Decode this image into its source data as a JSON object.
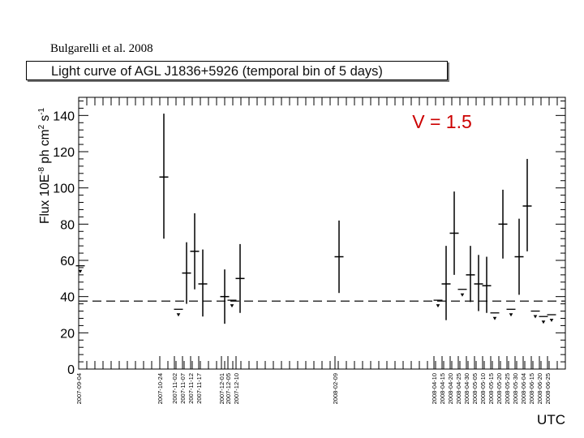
{
  "credit": "Bulgarelli et al. 2008",
  "chart_data": {
    "type": "scatter",
    "title": "Light curve of AGL J1836+5926 (temporal bin of 5 days)",
    "annotation": "V = 1.5",
    "ylabel": "Flux 10E-8 ph cm2 s-1",
    "ylabel_parts": {
      "main": "Flux 10E",
      "exp1": "-8",
      "mid": " ph cm",
      "exp2": "2",
      "mid2": " s",
      "exp3": "-1"
    },
    "xlabel": "UTC",
    "ylim": [
      0,
      150
    ],
    "yticks": [
      0,
      20,
      40,
      60,
      80,
      100,
      120,
      140
    ],
    "yticklabels": [
      "0",
      "20",
      "40",
      "60",
      "80",
      "100",
      "120",
      "140"
    ],
    "xlim": [
      0,
      300
    ],
    "xticks": [
      {
        "x": 0,
        "label": "2007-09-04"
      },
      {
        "x": 50,
        "label": "2007-10-24"
      },
      {
        "x": 59,
        "label": "2007-11-02"
      },
      {
        "x": 64,
        "label": "2007-11-07"
      },
      {
        "x": 69,
        "label": "2007-11-12"
      },
      {
        "x": 74,
        "label": "2007-11-17"
      },
      {
        "x": 88,
        "label": "2007-12-01"
      },
      {
        "x": 92,
        "label": "2007-12-05"
      },
      {
        "x": 97,
        "label": "2007-12-10"
      },
      {
        "x": 158,
        "label": "2008-02-09"
      },
      {
        "x": 219,
        "label": "2008-04-10"
      },
      {
        "x": 224,
        "label": "2008-04-15"
      },
      {
        "x": 229,
        "label": "2008-04-20"
      },
      {
        "x": 234,
        "label": "2008-04-25"
      },
      {
        "x": 239,
        "label": "2008-04-30"
      },
      {
        "x": 244,
        "label": "2008-05-05"
      },
      {
        "x": 249,
        "label": "2008-05-10"
      },
      {
        "x": 254,
        "label": "2008-05-15"
      },
      {
        "x": 259,
        "label": "2008-05-20"
      },
      {
        "x": 264,
        "label": "2008-05-25"
      },
      {
        "x": 269,
        "label": "2008-05-30"
      },
      {
        "x": 274,
        "label": "2008-06-04"
      },
      {
        "x": 279,
        "label": "2008-06-15"
      },
      {
        "x": 284,
        "label": "2008-06-20"
      },
      {
        "x": 289,
        "label": "2008-06-25"
      }
    ],
    "mean_flux": 37.5,
    "detections": [
      {
        "date": "2007-10-24",
        "x": 52.5,
        "y": 106,
        "err_low": 34,
        "err_high": 35
      },
      {
        "date": "2007-11-07",
        "x": 66.5,
        "y": 53,
        "err_low": 17,
        "err_high": 17
      },
      {
        "date": "2007-11-12",
        "x": 71.5,
        "y": 65,
        "err_low": 21,
        "err_high": 21
      },
      {
        "date": "2007-11-17",
        "x": 76.5,
        "y": 47,
        "err_low": 18,
        "err_high": 19
      },
      {
        "date": "2007-12-01",
        "x": 90,
        "y": 40,
        "err_low": 15,
        "err_high": 15
      },
      {
        "date": "2007-12-10",
        "x": 99.5,
        "y": 50,
        "err_low": 19,
        "err_high": 19
      },
      {
        "date": "2008-02-09",
        "x": 160.5,
        "y": 62,
        "err_low": 20,
        "err_high": 20
      },
      {
        "date": "2008-04-15",
        "x": 226.5,
        "y": 47,
        "err_low": 20,
        "err_high": 21
      },
      {
        "date": "2008-04-20",
        "x": 231.5,
        "y": 75,
        "err_low": 23,
        "err_high": 23
      },
      {
        "date": "2008-04-30",
        "x": 241.5,
        "y": 52,
        "err_low": 15,
        "err_high": 16
      },
      {
        "date": "2008-05-05",
        "x": 246.5,
        "y": 47,
        "err_low": 15,
        "err_high": 16
      },
      {
        "date": "2008-05-10",
        "x": 251.5,
        "y": 46,
        "err_low": 15,
        "err_high": 16
      },
      {
        "date": "2008-05-20",
        "x": 261.5,
        "y": 80,
        "err_low": 19,
        "err_high": 19
      },
      {
        "date": "2008-05-30",
        "x": 271.5,
        "y": 62,
        "err_low": 21,
        "err_high": 21
      },
      {
        "date": "2008-06-04",
        "x": 276.5,
        "y": 90,
        "err_low": 25,
        "err_high": 26
      }
    ],
    "upper_limits": [
      {
        "date": "2007-09-04",
        "x": 1,
        "y": 57
      },
      {
        "date": "2007-11-02",
        "x": 61.5,
        "y": 33
      },
      {
        "date": "2007-12-05",
        "x": 94.5,
        "y": 38
      },
      {
        "date": "2008-04-10",
        "x": 221.5,
        "y": 38
      },
      {
        "date": "2008-04-25",
        "x": 236.5,
        "y": 44
      },
      {
        "date": "2008-05-15",
        "x": 256.5,
        "y": 31
      },
      {
        "date": "2008-05-25",
        "x": 266.5,
        "y": 33
      },
      {
        "date": "2008-06-15",
        "x": 281.5,
        "y": 32
      },
      {
        "date": "2008-06-20",
        "x": 286.5,
        "y": 29
      },
      {
        "date": "2008-06-25",
        "x": 291.5,
        "y": 30
      }
    ],
    "colors": {
      "axis": "#000000",
      "points": "#000000",
      "mean_line": "#333333",
      "annotation": "#cc0000"
    }
  }
}
